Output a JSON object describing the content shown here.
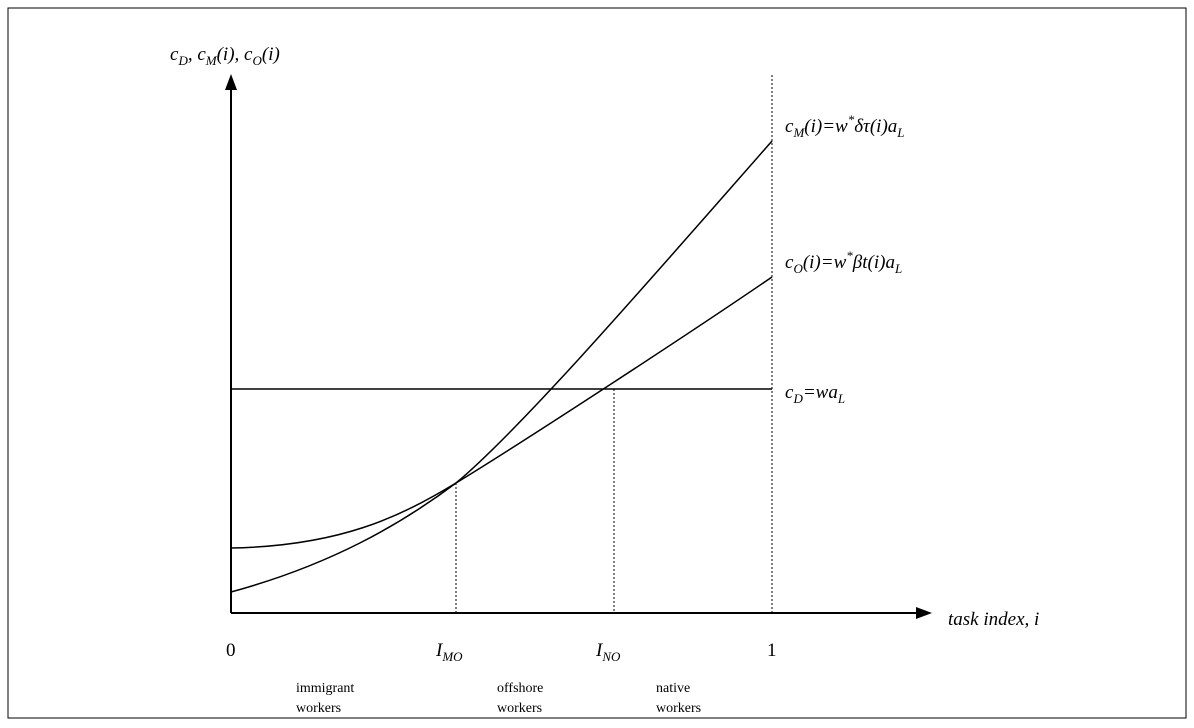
{
  "y_axis_label": [
    "c",
    "D",
    ", c",
    "M",
    "(i), c",
    "O",
    "(i)"
  ],
  "x_axis_label": "task index, i",
  "curves": {
    "c_M": [
      "c",
      "M",
      "(i)=w",
      "*",
      "δτ(i)a",
      "L"
    ],
    "c_O": [
      "c",
      "O",
      "(i)=w",
      "*",
      "βt(i)a",
      "L"
    ],
    "c_D": [
      "c",
      "D",
      "=wa",
      "L"
    ]
  },
  "x_ticks": [
    "0",
    [
      "I",
      "MO"
    ],
    [
      "I",
      "NO"
    ],
    "1"
  ],
  "regions": [
    [
      "immigrant",
      "workers"
    ],
    [
      "offshore",
      "workers"
    ],
    [
      "native",
      "workers"
    ]
  ]
}
